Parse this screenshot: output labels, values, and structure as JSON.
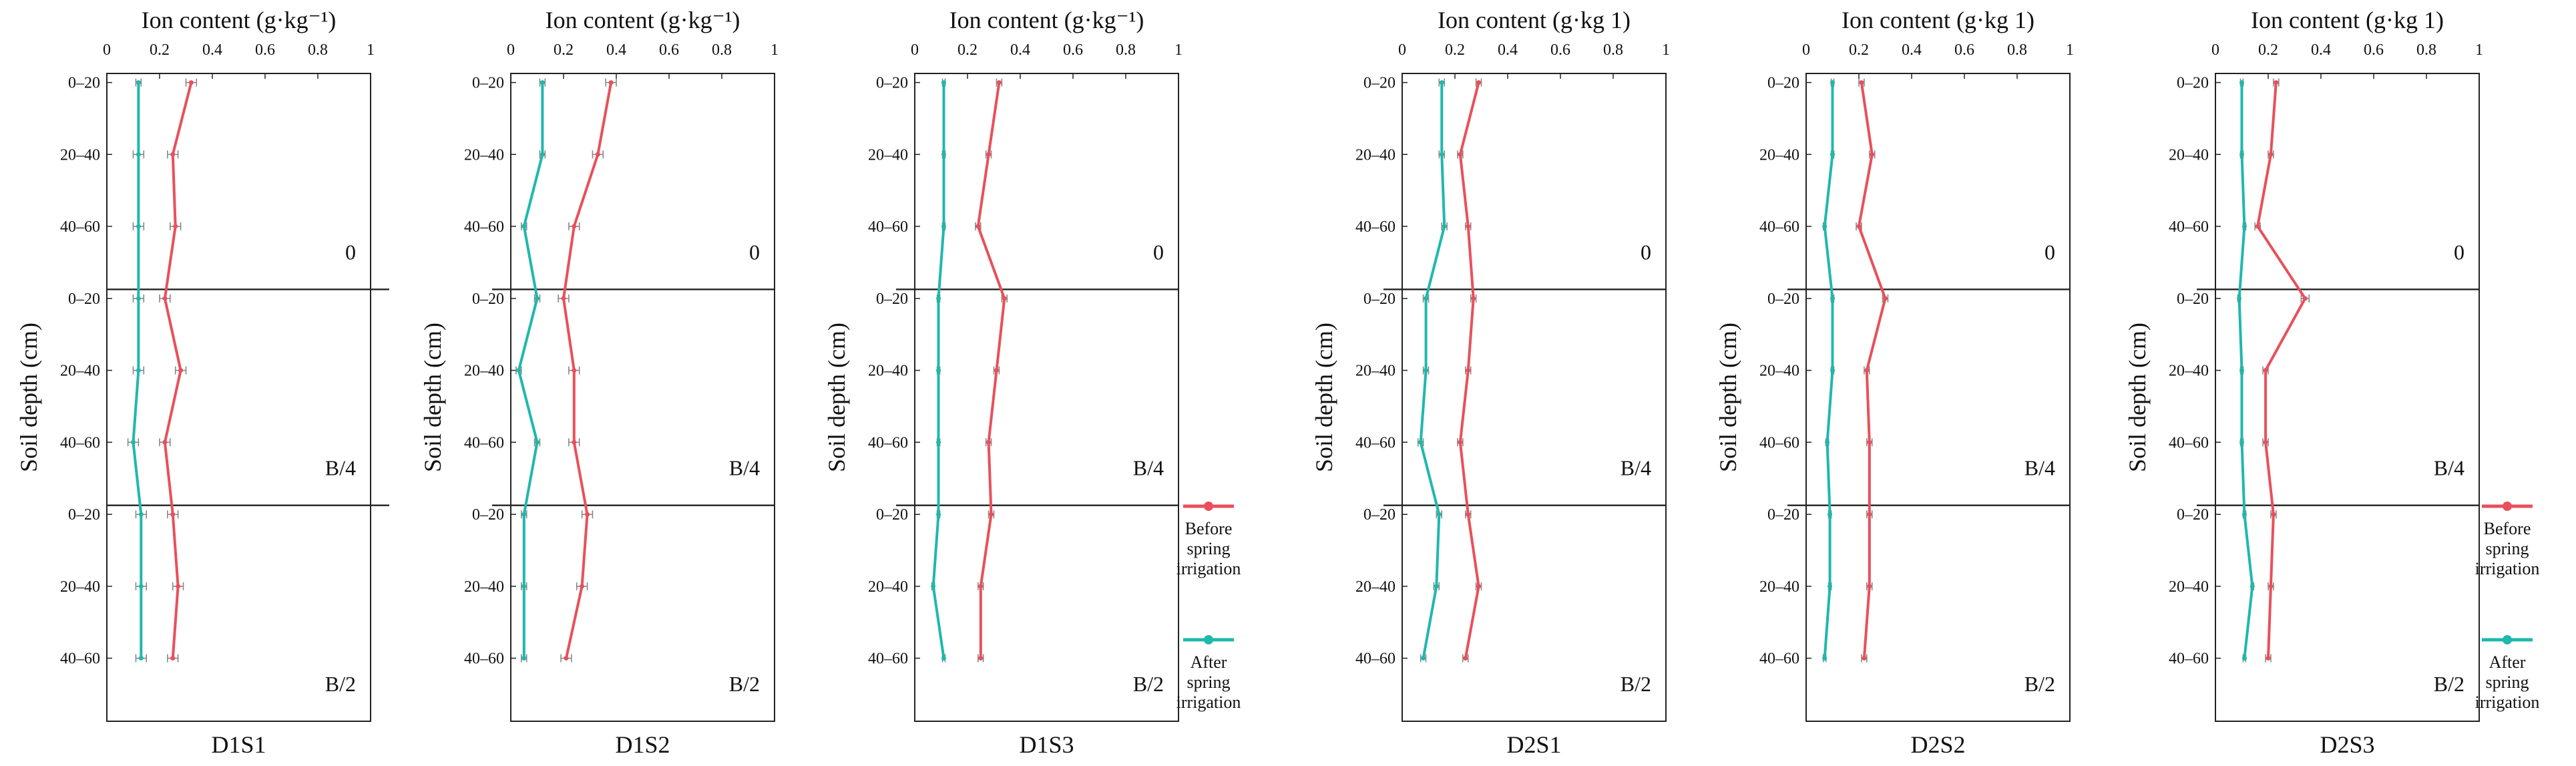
{
  "colors": {
    "before": "#e8505b",
    "after": "#1fb8ad",
    "error": "#888888",
    "axis": "#222222"
  },
  "chart_data": {
    "type": "line",
    "orientation": "vertical-profile",
    "xlabel": "Ion content (g·kg⁻¹)",
    "ylabel": "Soil depth (cm)",
    "xlim": [
      0,
      1
    ],
    "x_ticks": [
      "0",
      "0.2",
      "0.4",
      "0.6",
      "0.8",
      "1"
    ],
    "depth_ticks": [
      "0–20",
      "20–40",
      "40–60"
    ],
    "sections": [
      "0",
      "B/4",
      "B/2"
    ],
    "legend": [
      {
        "key": "before",
        "label_lines": [
          "Before",
          "spring",
          "irrigation"
        ]
      },
      {
        "key": "after",
        "label_lines": [
          "After",
          "spring",
          "irrigation"
        ]
      }
    ],
    "panels": [
      {
        "name": "D1S1",
        "xlabel": "Ion content (g·kg⁻¹)",
        "before": [
          0.32,
          0.25,
          0.26,
          0.22,
          0.28,
          0.22,
          0.25,
          0.27,
          0.25
        ],
        "after": [
          0.12,
          0.12,
          0.12,
          0.12,
          0.12,
          0.1,
          0.13,
          0.13,
          0.13
        ],
        "before_err": [
          0.02,
          0.02,
          0.02,
          0.02,
          0.02,
          0.02,
          0.02,
          0.02,
          0.02
        ],
        "after_err": [
          0.01,
          0.02,
          0.02,
          0.02,
          0.02,
          0.02,
          0.02,
          0.02,
          0.02
        ]
      },
      {
        "name": "D1S2",
        "xlabel": "Ion content (g·kg⁻¹)",
        "before": [
          0.38,
          0.33,
          0.24,
          0.2,
          0.24,
          0.24,
          0.29,
          0.27,
          0.21
        ],
        "after": [
          0.12,
          0.12,
          0.05,
          0.1,
          0.03,
          0.1,
          0.05,
          0.05,
          0.05
        ],
        "before_err": [
          0.02,
          0.02,
          0.02,
          0.02,
          0.02,
          0.02,
          0.02,
          0.02,
          0.02
        ],
        "after_err": [
          0.01,
          0.01,
          0.01,
          0.01,
          0.01,
          0.01,
          0.01,
          0.01,
          0.01
        ]
      },
      {
        "name": "D1S3",
        "xlabel": "Ion content (g·kg⁻¹)",
        "before": [
          0.32,
          0.28,
          0.24,
          0.34,
          0.31,
          0.28,
          0.29,
          0.25,
          0.25
        ],
        "after": [
          0.11,
          0.11,
          0.11,
          0.09,
          0.09,
          0.09,
          0.09,
          0.07,
          0.11
        ],
        "before_err": [
          0.01,
          0.01,
          0.01,
          0.01,
          0.01,
          0.01,
          0.01,
          0.01,
          0.01
        ],
        "after_err": [
          0.005,
          0.005,
          0.005,
          0.005,
          0.005,
          0.005,
          0.005,
          0.005,
          0.005
        ]
      },
      {
        "name": "D2S1",
        "xlabel": "Ion content (g·kg 1)",
        "before": [
          0.29,
          0.22,
          0.25,
          0.27,
          0.25,
          0.22,
          0.25,
          0.29,
          0.24
        ],
        "after": [
          0.15,
          0.15,
          0.16,
          0.09,
          0.09,
          0.07,
          0.14,
          0.13,
          0.08
        ],
        "before_err": [
          0.01,
          0.01,
          0.01,
          0.01,
          0.01,
          0.01,
          0.01,
          0.01,
          0.01
        ],
        "after_err": [
          0.01,
          0.01,
          0.01,
          0.01,
          0.01,
          0.01,
          0.01,
          0.01,
          0.01
        ]
      },
      {
        "name": "D2S2",
        "xlabel": "Ion content (g·kg 1)",
        "before": [
          0.21,
          0.25,
          0.2,
          0.3,
          0.23,
          0.24,
          0.24,
          0.24,
          0.22
        ],
        "after": [
          0.1,
          0.1,
          0.07,
          0.1,
          0.1,
          0.08,
          0.09,
          0.09,
          0.07
        ],
        "before_err": [
          0.01,
          0.01,
          0.01,
          0.01,
          0.01,
          0.01,
          0.01,
          0.01,
          0.01
        ],
        "after_err": [
          0.005,
          0.005,
          0.005,
          0.005,
          0.005,
          0.005,
          0.005,
          0.005,
          0.005
        ]
      },
      {
        "name": "D2S3",
        "xlabel": "Ion content (g·kg 1)",
        "before": [
          0.23,
          0.21,
          0.16,
          0.34,
          0.19,
          0.19,
          0.22,
          0.21,
          0.2
        ],
        "after": [
          0.1,
          0.1,
          0.11,
          0.09,
          0.1,
          0.1,
          0.11,
          0.14,
          0.11
        ],
        "before_err": [
          0.01,
          0.01,
          0.01,
          0.015,
          0.01,
          0.01,
          0.01,
          0.01,
          0.01
        ],
        "after_err": [
          0.005,
          0.005,
          0.005,
          0.005,
          0.005,
          0.005,
          0.005,
          0.005,
          0.005
        ]
      }
    ]
  }
}
